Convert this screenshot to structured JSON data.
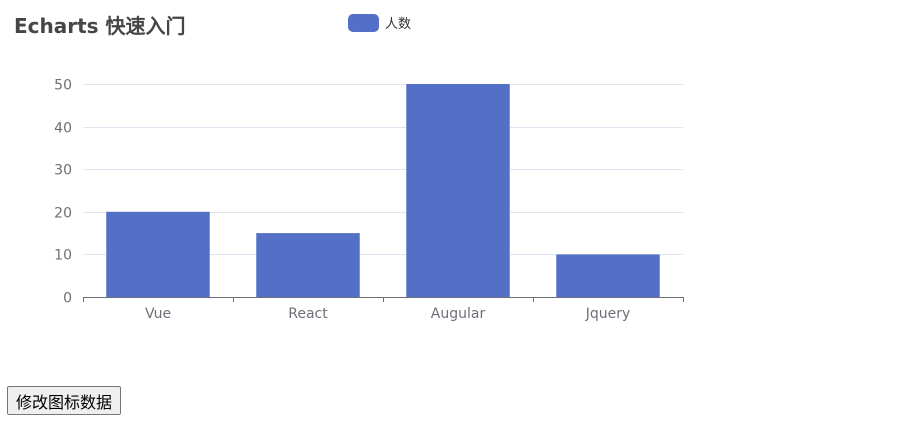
{
  "chart_data": {
    "type": "bar",
    "title": "Echarts 快速入门",
    "categories": [
      "Vue",
      "React",
      "Augular",
      "Jquery"
    ],
    "series": [
      {
        "name": "人数",
        "values": [
          20,
          15,
          50,
          10
        ]
      }
    ],
    "ylim": [
      0,
      50
    ],
    "yticks": [
      0,
      10,
      20,
      30,
      40,
      50
    ],
    "xlabel": "",
    "ylabel": "",
    "grid": true,
    "legend_position": "top-center",
    "colors": {
      "bar": "#5470c6",
      "axis": "#6e7079",
      "grid": "#e0e6f1",
      "title": "#464646"
    }
  },
  "button": {
    "label": "修改图标数据"
  }
}
